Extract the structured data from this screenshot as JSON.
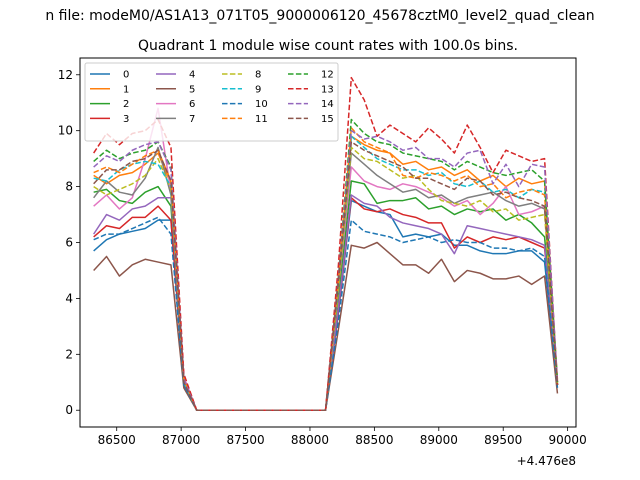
{
  "chart_data": {
    "type": "line",
    "suptitle": "n file: modeM0/AS1A13_071T05_9000006120_45678cztM0_level2_quad_clean",
    "title": "Quadrant 1 module wise count rates with 100.0s bins.",
    "xlabel": "",
    "ylabel": "",
    "x_offset_label": "+4.476e8",
    "xlim": [
      86215,
      90065
    ],
    "ylim": [
      -0.6,
      12.6
    ],
    "xticks": [
      86500,
      87000,
      87500,
      88000,
      88500,
      89000,
      89500,
      90000
    ],
    "xtick_labels": [
      "86500",
      "87000",
      "87500",
      "88000",
      "88500",
      "89000",
      "89500",
      "90000"
    ],
    "yticks": [
      0,
      2,
      4,
      6,
      8,
      10,
      12
    ],
    "ytick_labels": [
      "0",
      "2",
      "4",
      "6",
      "8",
      "10",
      "12"
    ],
    "grid": false,
    "legend_position": "upper-left",
    "legend_columns": 4,
    "x": [
      86321,
      86421,
      86521,
      86621,
      86721,
      86821,
      86921,
      87021,
      87121,
      87221,
      87321,
      87421,
      87521,
      87621,
      87721,
      87821,
      87921,
      88021,
      88121,
      88221,
      88321,
      88421,
      88521,
      88621,
      88721,
      88821,
      88921,
      89021,
      89121,
      89221,
      89321,
      89421,
      89521,
      89621,
      89721,
      89821,
      89921
    ],
    "series": [
      {
        "name": "0",
        "color": "#1f77b4",
        "dash": "solid",
        "values": [
          5.7,
          6.1,
          6.3,
          6.4,
          6.5,
          6.8,
          6.8,
          0.9,
          0,
          0,
          0,
          0,
          0,
          0,
          0,
          0,
          0,
          0,
          0,
          3.5,
          7.5,
          7.3,
          7.1,
          7.0,
          6.2,
          6.3,
          6.2,
          6.3,
          5.9,
          5.9,
          5.7,
          5.6,
          5.6,
          5.7,
          5.7,
          5.3,
          0.9
        ]
      },
      {
        "name": "1",
        "color": "#ff7f0e",
        "dash": "solid",
        "values": [
          8.4,
          8.1,
          8.4,
          8.5,
          8.8,
          9.2,
          8.1,
          1.1,
          0,
          0,
          0,
          0,
          0,
          0,
          0,
          0,
          0,
          0,
          0,
          4.5,
          9.8,
          9.5,
          9.3,
          9.2,
          8.8,
          8.9,
          8.6,
          8.7,
          8.4,
          8.6,
          8.2,
          8.4,
          8.0,
          8.3,
          8.1,
          8.2,
          1.1
        ]
      },
      {
        "name": "2",
        "color": "#2ca02c",
        "dash": "solid",
        "values": [
          7.8,
          7.9,
          7.5,
          7.4,
          7.8,
          8.0,
          7.3,
          1.0,
          0,
          0,
          0,
          0,
          0,
          0,
          0,
          0,
          0,
          0,
          0,
          4.0,
          8.2,
          8.1,
          7.4,
          7.5,
          7.5,
          7.6,
          7.2,
          7.3,
          7.0,
          7.2,
          7.1,
          7.2,
          6.8,
          7.0,
          6.7,
          6.2,
          1.0
        ]
      },
      {
        "name": "3",
        "color": "#d62728",
        "dash": "solid",
        "values": [
          6.2,
          6.6,
          6.5,
          6.9,
          6.9,
          7.3,
          6.8,
          1.0,
          0,
          0,
          0,
          0,
          0,
          0,
          0,
          0,
          0,
          0,
          0,
          3.6,
          7.6,
          7.2,
          7.1,
          7.2,
          7.0,
          6.9,
          6.7,
          6.7,
          5.8,
          6.2,
          6.0,
          6.2,
          6.1,
          6.2,
          6.0,
          5.8,
          0.9
        ]
      },
      {
        "name": "4",
        "color": "#9467bd",
        "dash": "solid",
        "values": [
          6.3,
          7.0,
          6.8,
          7.2,
          7.3,
          7.6,
          7.6,
          1.0,
          0,
          0,
          0,
          0,
          0,
          0,
          0,
          0,
          0,
          0,
          0,
          3.7,
          7.7,
          7.4,
          7.3,
          6.9,
          6.7,
          6.6,
          6.5,
          6.3,
          5.6,
          6.6,
          6.5,
          6.4,
          6.3,
          6.2,
          6.1,
          5.9,
          0.9
        ]
      },
      {
        "name": "5",
        "color": "#8c564b",
        "dash": "solid",
        "values": [
          5.0,
          5.5,
          4.8,
          5.2,
          5.4,
          5.3,
          5.2,
          0.8,
          0,
          0,
          0,
          0,
          0,
          0,
          0,
          0,
          0,
          0,
          0,
          2.9,
          5.9,
          5.8,
          6.0,
          5.6,
          5.2,
          5.2,
          4.9,
          5.4,
          4.6,
          5.0,
          4.9,
          4.7,
          4.7,
          4.8,
          4.5,
          4.8,
          0.6
        ]
      },
      {
        "name": "6",
        "color": "#e377c2",
        "dash": "solid",
        "values": [
          7.3,
          7.7,
          7.2,
          7.6,
          9.0,
          10.8,
          7.8,
          1.2,
          0,
          0,
          0,
          0,
          0,
          0,
          0,
          0,
          0,
          0,
          0,
          4.4,
          8.7,
          8.2,
          8.0,
          7.9,
          8.1,
          8.0,
          7.8,
          7.6,
          7.3,
          7.5,
          7.0,
          7.4,
          8.0,
          7.0,
          7.1,
          7.3,
          1.0
        ]
      },
      {
        "name": "7",
        "color": "#7f7f7f",
        "dash": "solid",
        "values": [
          7.6,
          8.2,
          7.8,
          7.7,
          8.3,
          9.4,
          7.7,
          1.0,
          0,
          0,
          0,
          0,
          0,
          0,
          0,
          0,
          0,
          0,
          0,
          4.4,
          9.2,
          8.8,
          8.4,
          8.1,
          7.8,
          7.9,
          7.6,
          7.7,
          7.4,
          7.6,
          7.7,
          7.8,
          7.5,
          7.3,
          7.4,
          7.2,
          0.9
        ]
      },
      {
        "name": "8",
        "color": "#bcbd22",
        "dash": "dashed",
        "values": [
          8.0,
          7.7,
          7.9,
          8.1,
          8.4,
          9.0,
          7.9,
          1.1,
          0,
          0,
          0,
          0,
          0,
          0,
          0,
          0,
          0,
          0,
          0,
          4.3,
          9.4,
          9.0,
          8.9,
          8.6,
          8.3,
          8.4,
          7.9,
          7.5,
          7.4,
          7.3,
          7.5,
          7.1,
          7.2,
          6.8,
          6.9,
          7.0,
          0.9
        ]
      },
      {
        "name": "9",
        "color": "#17becf",
        "dash": "dashed",
        "values": [
          8.3,
          8.2,
          8.6,
          8.8,
          8.9,
          8.8,
          8.0,
          1.0,
          0,
          0,
          0,
          0,
          0,
          0,
          0,
          0,
          0,
          0,
          0,
          4.5,
          9.8,
          9.4,
          9.0,
          8.8,
          8.6,
          8.6,
          8.4,
          8.5,
          8.1,
          8.0,
          8.2,
          7.8,
          7.9,
          7.6,
          7.9,
          7.8,
          1.0
        ]
      },
      {
        "name": "10",
        "color": "#1f77b4",
        "dash": "dashed",
        "values": [
          6.1,
          6.3,
          6.3,
          6.5,
          6.7,
          6.9,
          6.3,
          0.9,
          0,
          0,
          0,
          0,
          0,
          0,
          0,
          0,
          0,
          0,
          0,
          3.2,
          6.8,
          6.4,
          6.3,
          6.2,
          6.0,
          6.1,
          6.2,
          6.0,
          6.1,
          6.0,
          6.0,
          5.8,
          5.8,
          5.7,
          5.8,
          5.5,
          0.8
        ]
      },
      {
        "name": "11",
        "color": "#ff7f0e",
        "dash": "dashed",
        "values": [
          8.5,
          8.7,
          8.5,
          8.8,
          9.1,
          9.3,
          8.2,
          1.1,
          0,
          0,
          0,
          0,
          0,
          0,
          0,
          0,
          0,
          0,
          0,
          4.6,
          10.1,
          9.6,
          9.4,
          9.2,
          8.4,
          8.3,
          8.5,
          8.4,
          8.2,
          8.4,
          8.0,
          8.1,
          7.6,
          7.8,
          7.9,
          7.7,
          1.0
        ]
      },
      {
        "name": "12",
        "color": "#2ca02c",
        "dash": "dashed",
        "values": [
          8.9,
          9.3,
          9.0,
          9.2,
          9.3,
          9.6,
          8.7,
          1.1,
          0,
          0,
          0,
          0,
          0,
          0,
          0,
          0,
          0,
          0,
          0,
          4.8,
          10.4,
          9.9,
          9.6,
          9.5,
          9.2,
          9.1,
          9.0,
          8.9,
          8.6,
          8.9,
          8.7,
          8.5,
          8.4,
          8.5,
          8.6,
          8.2,
          1.0
        ]
      },
      {
        "name": "13",
        "color": "#d62728",
        "dash": "dashed",
        "values": [
          9.2,
          9.9,
          9.5,
          9.9,
          10.0,
          10.4,
          9.4,
          1.3,
          0,
          0,
          0,
          0,
          0,
          0,
          0,
          0,
          0,
          0,
          0,
          5.2,
          11.9,
          11.1,
          9.8,
          10.2,
          9.9,
          9.6,
          10.1,
          9.7,
          9.2,
          10.2,
          9.4,
          8.5,
          9.3,
          9.1,
          8.9,
          9.0,
          0.9
        ]
      },
      {
        "name": "14",
        "color": "#9467bd",
        "dash": "dashed",
        "values": [
          8.7,
          9.1,
          8.9,
          9.3,
          9.5,
          9.6,
          8.6,
          1.1,
          0,
          0,
          0,
          0,
          0,
          0,
          0,
          0,
          0,
          0,
          0,
          4.7,
          10.0,
          9.7,
          9.8,
          9.6,
          9.3,
          9.4,
          9.0,
          9.0,
          8.7,
          9.2,
          9.3,
          8.1,
          8.8,
          8.0,
          8.8,
          8.7,
          1.0
        ]
      },
      {
        "name": "15",
        "color": "#8c564b",
        "dash": "dashed",
        "values": [
          8.1,
          8.6,
          8.6,
          8.9,
          9.0,
          9.3,
          8.2,
          1.0,
          0,
          0,
          0,
          0,
          0,
          0,
          0,
          0,
          0,
          0,
          0,
          4.6,
          9.6,
          9.3,
          9.1,
          8.9,
          8.7,
          8.3,
          8.3,
          8.1,
          7.9,
          8.3,
          8.2,
          7.7,
          7.8,
          7.6,
          7.5,
          7.3,
          0.9
        ]
      }
    ]
  }
}
